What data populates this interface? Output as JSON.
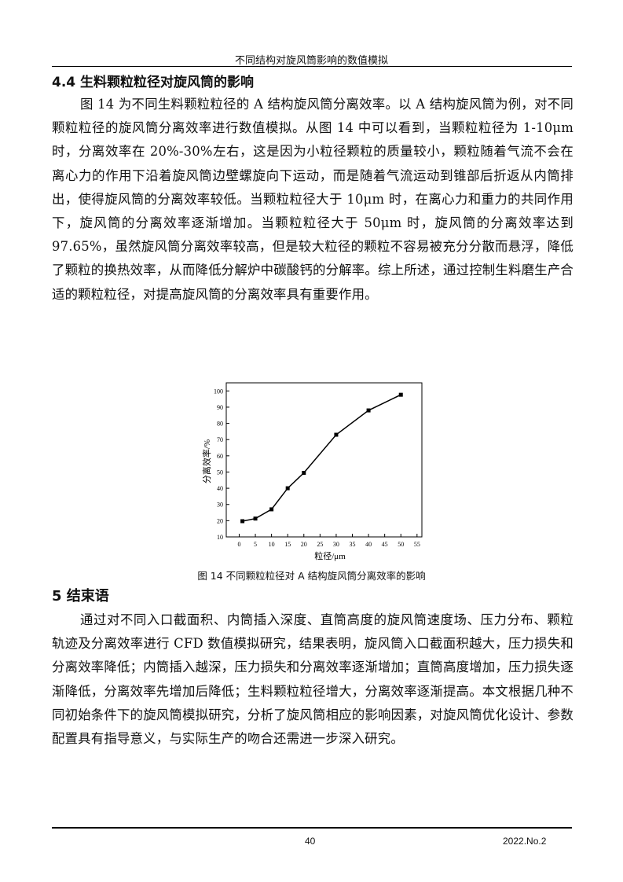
{
  "header": {
    "running_title": "不同结构对旋风筒影响的数值模拟"
  },
  "section_4_4": {
    "heading": "4.4 生料颗粒粒径对旋风筒的影响",
    "paragraph": "图 14 为不同生料颗粒粒径的 A 结构旋风筒分离效率。以 A 结构旋风筒为例，对不同颗粒粒径的旋风筒分离效率进行数值模拟。从图 14 中可以看到，当颗粒粒径为 1-10μm 时，分离效率在 20%-30%左右，这是因为小粒径颗粒的质量较小，颗粒随着气流不会在离心力的作用下沿着旋风筒边壁螺旋向下运动，而是随着气流运动到锥部后折返从内筒排出，使得旋风筒的分离效率较低。当颗粒粒径大于 10μm 时，在离心力和重力的共同作用下，旋风筒的分离效率逐渐增加。当颗粒粒径大于 50μm 时，旋风筒的分离效率达到 97.65%，虽然旋风筒分离效率较高，但是较大粒径的颗粒不容易被充分分散而悬浮，降低了颗粒的换热效率，从而降低分解炉中碳酸钙的分解率。综上所述，通过控制生料磨生产合适的颗粒粒径，对提高旋风筒的分离效率具有重要作用。"
  },
  "chart_data": {
    "type": "line",
    "xlabel": "粒径/μm",
    "ylabel": "分离效率/%",
    "xlim": [
      -4,
      56.5
    ],
    "ylim": [
      10,
      105
    ],
    "xticks": [
      0,
      5,
      10,
      15,
      20,
      25,
      30,
      35,
      40,
      45,
      50,
      55
    ],
    "yticks": [
      10,
      20,
      30,
      40,
      50,
      60,
      70,
      80,
      90,
      100
    ],
    "grid": false,
    "series": [
      {
        "x": [
          1,
          5,
          10,
          15,
          20,
          30,
          40,
          50
        ],
        "y": [
          19.7,
          21.3,
          27,
          40,
          49.5,
          73,
          88,
          97.65
        ],
        "marker": "square",
        "color": "#000000"
      }
    ]
  },
  "figure_caption": "图 14  不同颗粒粒径对 A 结构旋风筒分离效率的影响",
  "section_5": {
    "heading": "5    结束语",
    "paragraph": "通过对不同入口截面积、内筒插入深度、直筒高度的旋风筒速度场、压力分布、颗粒轨迹及分离效率进行 CFD 数值模拟研究，结果表明，旋风筒入口截面积越大，压力损失和分离效率降低；内筒插入越深，压力损失和分离效率逐渐增加；直筒高度增加，压力损失逐渐降低，分离效率先增加后降低；生料颗粒粒径增大，分离效率逐渐提高。本文根据几种不同初始条件下的旋风筒模拟研究，分析了旋风筒相应的影响因素，对旋风筒优化设计、参数配置具有指导意义，与实际生产的吻合还需进一步深入研究。"
  },
  "footer": {
    "page_number": "40",
    "issue": "2022.No.2"
  }
}
